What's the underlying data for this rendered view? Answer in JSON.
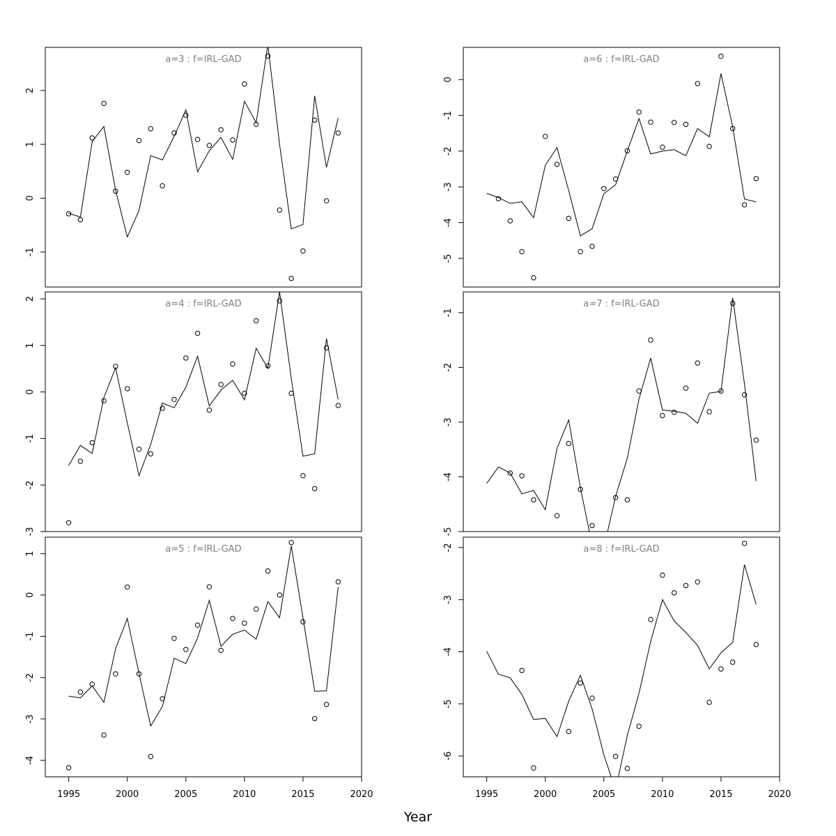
{
  "figure": {
    "xlabel": "Year"
  },
  "chart_data": [
    {
      "type": "line",
      "title": "a=3  :  f=IRL-GAD",
      "xlim": [
        1993,
        2020
      ],
      "ylim": [
        -1.65,
        2.8
      ],
      "xticks": [
        1995,
        2000,
        2005,
        2010,
        2015,
        2020
      ],
      "yticks": [
        -1,
        0,
        1,
        2
      ],
      "fitted": {
        "x": [
          1995,
          1996,
          1997,
          1998,
          1999,
          2000,
          2001,
          2002,
          2003,
          2004,
          2005,
          2006,
          2007,
          2008,
          2009,
          2010,
          2011,
          2012,
          2013,
          2014,
          2015,
          2016,
          2017,
          2018
        ],
        "y": [
          -0.28,
          -0.35,
          1.05,
          1.33,
          0.15,
          -0.72,
          -0.23,
          0.79,
          0.71,
          1.15,
          1.64,
          0.49,
          0.88,
          1.13,
          0.72,
          1.8,
          1.4,
          2.85,
          1.0,
          -0.57,
          -0.49,
          1.9,
          0.57,
          1.49
        ]
      },
      "observed": {
        "x": [
          1995,
          1996,
          1997,
          1998,
          1999,
          2000,
          2001,
          2002,
          2003,
          2004,
          2005,
          2006,
          2007,
          2008,
          2009,
          2010,
          2011,
          2012,
          2013,
          2014,
          2015,
          2016,
          2017,
          2018
        ],
        "y": [
          -0.29,
          -0.4,
          1.12,
          1.76,
          0.13,
          0.48,
          1.07,
          1.29,
          0.23,
          1.21,
          1.54,
          1.09,
          0.98,
          1.27,
          1.08,
          2.12,
          1.37,
          2.64,
          -0.22,
          -1.49,
          -0.98,
          1.45,
          -0.05,
          1.21
        ]
      }
    },
    {
      "type": "line",
      "title": "a=4  :  f=IRL-GAD",
      "xlim": [
        1993,
        2020
      ],
      "ylim": [
        -3.0,
        2.15
      ],
      "xticks": [
        1995,
        2000,
        2005,
        2010,
        2015,
        2020
      ],
      "yticks": [
        -3,
        -2,
        -1,
        0,
        1,
        2
      ],
      "fitted": {
        "x": [
          1995,
          1996,
          1997,
          1998,
          1999,
          2000,
          2001,
          2002,
          2003,
          2004,
          2005,
          2006,
          2007,
          2008,
          2009,
          2010,
          2011,
          2012,
          2013,
          2014,
          2015,
          2016,
          2017,
          2018
        ],
        "y": [
          -1.58,
          -1.15,
          -1.32,
          -0.12,
          0.52,
          -0.66,
          -1.8,
          -1.13,
          -0.24,
          -0.34,
          0.1,
          0.77,
          -0.3,
          0.04,
          0.25,
          -0.17,
          0.94,
          0.51,
          2.15,
          0.29,
          -1.38,
          -1.33,
          1.15,
          -0.16
        ]
      },
      "observed": {
        "x": [
          1995,
          1996,
          1997,
          1998,
          1999,
          2000,
          2001,
          2002,
          2003,
          2004,
          2005,
          2006,
          2007,
          2008,
          2009,
          2010,
          2011,
          2012,
          2013,
          2014,
          2015,
          2016,
          2017,
          2018
        ],
        "y": [
          -2.81,
          -1.49,
          -1.09,
          -0.19,
          0.55,
          0.07,
          -1.23,
          -1.33,
          -0.35,
          -0.16,
          0.73,
          1.26,
          -0.39,
          0.16,
          0.6,
          -0.03,
          1.53,
          0.56,
          1.96,
          -0.03,
          -1.8,
          -2.08,
          0.95,
          -0.29
        ]
      }
    },
    {
      "type": "line",
      "title": "a=5  :  f=IRL-GAD",
      "xlim": [
        1993,
        2020
      ],
      "ylim": [
        -4.4,
        1.4
      ],
      "xticks": [
        1995,
        2000,
        2005,
        2010,
        2015,
        2020
      ],
      "yticks": [
        -4,
        -3,
        -2,
        -1,
        0,
        1
      ],
      "fitted": {
        "x": [
          1995,
          1996,
          1997,
          1998,
          1999,
          2000,
          2001,
          2002,
          2003,
          2004,
          2005,
          2006,
          2007,
          2008,
          2009,
          2010,
          2011,
          2012,
          2013,
          2014,
          2015,
          2016,
          2017,
          2018
        ],
        "y": [
          -2.45,
          -2.49,
          -2.2,
          -2.6,
          -1.3,
          -0.57,
          -1.9,
          -3.17,
          -2.7,
          -1.53,
          -1.66,
          -1.04,
          -0.13,
          -1.24,
          -0.95,
          -0.85,
          -1.07,
          -0.16,
          -0.55,
          1.19,
          -0.55,
          -2.33,
          -2.32,
          0.19
        ]
      },
      "observed": {
        "x": [
          1995,
          1996,
          1997,
          1998,
          1999,
          2000,
          2001,
          2002,
          2003,
          2004,
          2005,
          2006,
          2007,
          2008,
          2009,
          2010,
          2011,
          2012,
          2013,
          2014,
          2015,
          2016,
          2017,
          2018
        ],
        "y": [
          -4.18,
          -2.35,
          -2.16,
          -3.39,
          -1.91,
          0.19,
          -1.91,
          -3.91,
          -2.51,
          -1.05,
          -1.32,
          -0.73,
          0.2,
          -1.34,
          -0.57,
          -0.68,
          -0.34,
          0.58,
          0.0,
          1.27,
          -0.65,
          -2.99,
          -2.65,
          0.32
        ]
      }
    },
    {
      "type": "line",
      "title": "a=6  :  f=IRL-GAD",
      "xlim": [
        1993,
        2020
      ],
      "ylim": [
        -5.8,
        0.9
      ],
      "xticks": [
        1995,
        2000,
        2005,
        2010,
        2015,
        2020
      ],
      "yticks": [
        -5,
        -4,
        -3,
        -2,
        -1,
        0
      ],
      "fitted": {
        "x": [
          1995,
          1996,
          1997,
          1998,
          1999,
          2000,
          2001,
          2002,
          2003,
          2004,
          2005,
          2006,
          2007,
          2008,
          2009,
          2010,
          2011,
          2012,
          2013,
          2014,
          2015,
          2016,
          2017,
          2018
        ],
        "y": [
          -3.18,
          -3.3,
          -3.46,
          -3.42,
          -3.86,
          -2.4,
          -1.9,
          -3.1,
          -4.37,
          -4.17,
          -3.19,
          -2.94,
          -2.0,
          -1.09,
          -2.08,
          -2.0,
          -1.96,
          -2.13,
          -1.37,
          -1.6,
          0.17,
          -1.32,
          -3.34,
          -3.42
        ]
      },
      "observed": {
        "x": [
          1996,
          1997,
          1998,
          1999,
          2000,
          2001,
          2002,
          2003,
          2004,
          2005,
          2006,
          2007,
          2008,
          2009,
          2010,
          2011,
          2012,
          2013,
          2014,
          2015,
          2016,
          2017,
          2018
        ],
        "y": [
          -3.33,
          -3.95,
          -4.81,
          -5.54,
          -1.59,
          -2.37,
          -3.88,
          -4.81,
          -4.66,
          -3.05,
          -2.78,
          -1.99,
          -0.91,
          -1.19,
          -1.89,
          -1.2,
          -1.25,
          -0.11,
          -1.87,
          0.65,
          -1.37,
          -3.5,
          -2.77
        ]
      }
    },
    {
      "type": "line",
      "title": "a=7  :  f=IRL-GAD",
      "xlim": [
        1993,
        2020
      ],
      "ylim": [
        -5.0,
        -0.62
      ],
      "xticks": [
        1995,
        2000,
        2005,
        2010,
        2015,
        2020
      ],
      "yticks": [
        -5,
        -4,
        -3,
        -2,
        -1
      ],
      "fitted": {
        "x": [
          1995,
          1996,
          1997,
          1998,
          1999,
          2000,
          2001,
          2002,
          2003,
          2004,
          2005,
          2006,
          2007,
          2008,
          2009,
          2010,
          2011,
          2012,
          2013,
          2014,
          2015,
          2016,
          2017,
          2018
        ],
        "y": [
          -4.12,
          -3.82,
          -3.93,
          -4.31,
          -4.25,
          -4.6,
          -3.48,
          -2.96,
          -4.2,
          -5.25,
          -5.3,
          -4.36,
          -3.66,
          -2.58,
          -1.83,
          -2.78,
          -2.8,
          -2.84,
          -3.02,
          -2.47,
          -2.44,
          -0.73,
          -2.3,
          -4.08
        ]
      },
      "observed": {
        "x": [
          1997,
          1998,
          1999,
          2001,
          2002,
          2003,
          2004,
          2006,
          2007,
          2008,
          2009,
          2010,
          2011,
          2012,
          2013,
          2014,
          2015,
          2016,
          2017,
          2018
        ],
        "y": [
          -3.93,
          -3.98,
          -4.42,
          -4.71,
          -3.39,
          -4.23,
          -4.89,
          -4.38,
          -4.42,
          -2.43,
          -1.5,
          -2.88,
          -2.82,
          -2.38,
          -1.92,
          -2.81,
          -2.43,
          -0.83,
          -2.5,
          -3.33
        ]
      }
    },
    {
      "type": "line",
      "title": "a=8  :  f=IRL-GAD",
      "xlim": [
        1993,
        2020
      ],
      "ylim": [
        -6.4,
        -1.8
      ],
      "xticks": [
        1995,
        2000,
        2005,
        2010,
        2015,
        2020
      ],
      "yticks": [
        -6,
        -5,
        -4,
        -3,
        -2
      ],
      "fitted": {
        "x": [
          1995,
          1996,
          1997,
          1998,
          1999,
          2000,
          2001,
          2002,
          2003,
          2004,
          2005,
          2006,
          2007,
          2008,
          2009,
          2010,
          2011,
          2012,
          2013,
          2014,
          2015,
          2016,
          2017,
          2018
        ],
        "y": [
          -3.99,
          -4.43,
          -4.5,
          -4.82,
          -5.3,
          -5.28,
          -5.63,
          -4.95,
          -4.45,
          -5.1,
          -5.98,
          -6.65,
          -5.61,
          -4.8,
          -3.8,
          -3.0,
          -3.41,
          -3.63,
          -3.88,
          -4.33,
          -4.02,
          -3.82,
          -2.33,
          -3.09
        ]
      },
      "observed": {
        "x": [
          1998,
          1999,
          2002,
          2003,
          2004,
          2006,
          2007,
          2008,
          2009,
          2010,
          2011,
          2012,
          2013,
          2014,
          2015,
          2016,
          2017,
          2018
        ],
        "y": [
          -4.36,
          -6.23,
          -5.53,
          -4.6,
          -4.89,
          -6.01,
          -6.24,
          -5.43,
          -3.38,
          -2.53,
          -2.87,
          -2.73,
          -2.66,
          -4.97,
          -4.33,
          -4.2,
          -1.92,
          -3.86
        ]
      }
    }
  ]
}
